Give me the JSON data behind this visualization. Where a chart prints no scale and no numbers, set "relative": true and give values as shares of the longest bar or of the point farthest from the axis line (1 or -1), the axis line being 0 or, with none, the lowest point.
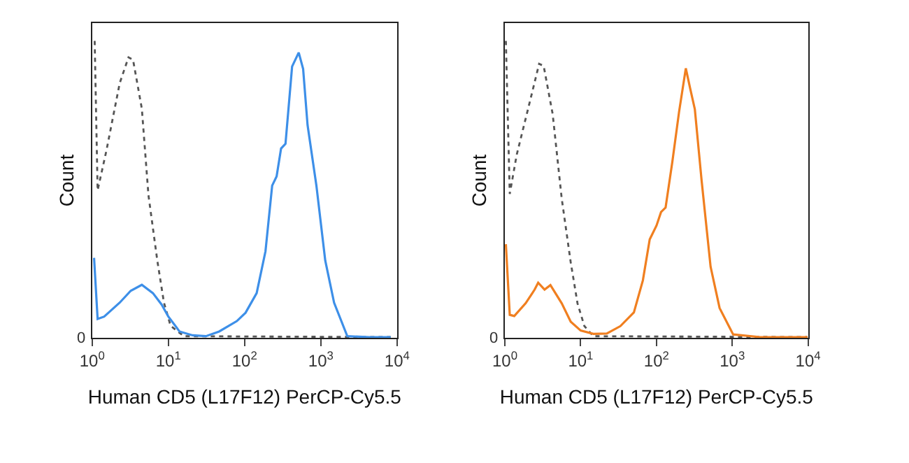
{
  "chart_data": [
    {
      "type": "line",
      "relative": true,
      "xlabel": "Human CD5 (L17F12) PerCP-Cy5.5",
      "ylabel": "Count",
      "log": "x",
      "xlim": [
        1,
        10000
      ],
      "xticks": [
        {
          "value": 1,
          "label": "10$^{0}$"
        },
        {
          "value": 10,
          "label": "10$^{1}$"
        },
        {
          "value": 100,
          "label": "10$^{2}$"
        },
        {
          "value": 1000,
          "label": "10$^{3}$"
        },
        {
          "value": 10000,
          "label": "10$^{4}$"
        }
      ],
      "annotations": [
        "0"
      ],
      "marker": "none",
      "series": [
        {
          "color": "#555555",
          "line_style": "dotted",
          "x": [
            1.08,
            1.18,
            1.54,
            2.3,
            3.0,
            3.44,
            4.49,
            5.48,
            7.16,
            8.75,
            10.7,
            16.0,
            8240
          ],
          "values": [
            1.0,
            0.497,
            0.631,
            0.858,
            0.945,
            0.937,
            0.772,
            0.481,
            0.261,
            0.119,
            0.041,
            0.006,
            0.003
          ]
        },
        {
          "color": "#3d8fe8",
          "line_style": "solid",
          "x": [
            1.06,
            1.18,
            1.44,
            2.3,
            3.21,
            4.49,
            6.27,
            8.19,
            10,
            14.0,
            20.8,
            31.1,
            46.4,
            79.2,
            103,
            144,
            188,
            230,
            263,
            301,
            344,
            420,
            513,
            586,
            670,
            875,
            1143,
            1493,
            2228,
            4342,
            8240
          ],
          "values": [
            0.27,
            0.064,
            0.072,
            0.119,
            0.159,
            0.179,
            0.151,
            0.112,
            0.072,
            0.022,
            0.009,
            0.006,
            0.022,
            0.057,
            0.085,
            0.151,
            0.292,
            0.513,
            0.544,
            0.638,
            0.654,
            0.914,
            0.961,
            0.906,
            0.717,
            0.513,
            0.261,
            0.119,
            0.006,
            0.003,
            0.003
          ]
        }
      ]
    },
    {
      "type": "line",
      "relative": true,
      "xlabel": "Human CD5 (L17F12) PerCP-Cy5.5",
      "ylabel": "Count",
      "log": "x",
      "xlim": [
        1,
        10000
      ],
      "xticks": [
        {
          "value": 1,
          "label": "10$^{0}$"
        },
        {
          "value": 10,
          "label": "10$^{1}$"
        },
        {
          "value": 100,
          "label": "10$^{2}$"
        },
        {
          "value": 1000,
          "label": "10$^{3}$"
        },
        {
          "value": 10000,
          "label": "10$^{4}$"
        }
      ],
      "annotations": [
        "0"
      ],
      "marker": "none",
      "series": [
        {
          "color": "#555555",
          "line_style": "dotted",
          "x": [
            1.03,
            1.16,
            1.43,
            2.31,
            2.83,
            3.25,
            4.27,
            5.62,
            7.39,
            9.08,
            11.2,
            14.7,
            9860
          ],
          "values": [
            1.0,
            0.485,
            0.616,
            0.831,
            0.923,
            0.916,
            0.754,
            0.47,
            0.255,
            0.117,
            0.04,
            0.006,
            0.003
          ]
        },
        {
          "color": "#f07f20",
          "line_style": "solid",
          "x": [
            1.03,
            1.16,
            1.33,
            1.88,
            2.47,
            2.75,
            3.34,
            3.99,
            5.62,
            7.39,
            10,
            14.7,
            22.1,
            33.4,
            50.4,
            66.2,
            81.5,
            100,
            115,
            132,
            162,
            199,
            244,
            279,
            321,
            394,
            518,
            681,
            1028,
            2339,
            9860
          ],
          "values": [
            0.316,
            0.078,
            0.074,
            0.117,
            0.163,
            0.186,
            0.163,
            0.178,
            0.117,
            0.055,
            0.025,
            0.014,
            0.015,
            0.04,
            0.086,
            0.194,
            0.332,
            0.378,
            0.424,
            0.439,
            0.593,
            0.762,
            0.908,
            0.839,
            0.77,
            0.531,
            0.24,
            0.101,
            0.012,
            0.003,
            0.003
          ]
        }
      ]
    }
  ]
}
